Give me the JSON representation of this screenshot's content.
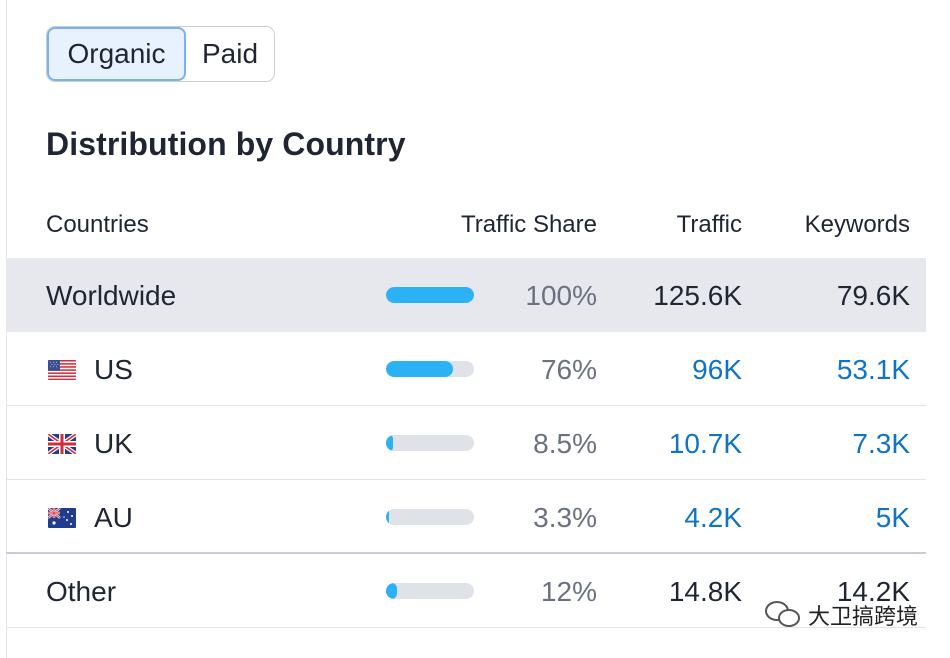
{
  "tabs": {
    "organic": "Organic",
    "paid": "Paid"
  },
  "page": {
    "title": "Distribution by Country"
  },
  "table": {
    "headers": {
      "countries": "Countries",
      "traffic_share": "Traffic Share",
      "traffic": "Traffic",
      "keywords": "Keywords"
    },
    "rows": [
      {
        "country": "Worldwide",
        "share": "100%",
        "share_fraction": 1.0,
        "traffic": "125.6K",
        "keywords": "79.6K"
      },
      {
        "country": "US",
        "flag_icon": "us-flag-icon",
        "share": "76%",
        "share_fraction": 0.76,
        "traffic": "96K",
        "keywords": "53.1K"
      },
      {
        "country": "UK",
        "flag_icon": "uk-flag-icon",
        "share": "8.5%",
        "share_fraction": 0.085,
        "traffic": "10.7K",
        "keywords": "7.3K"
      },
      {
        "country": "AU",
        "flag_icon": "au-flag-icon",
        "share": "3.3%",
        "share_fraction": 0.033,
        "traffic": "4.2K",
        "keywords": "5K"
      },
      {
        "country": "Other",
        "share": "12%",
        "share_fraction": 0.12,
        "traffic": "14.8K",
        "keywords": "14.2K"
      }
    ]
  },
  "watermark": {
    "text": "大卫搞跨境",
    "icon": "wechat-icon"
  },
  "colors": {
    "bar": "#2bb2f5",
    "bar_track": "#dfe3e8",
    "link": "#0f73c6",
    "highlight_row": "#e6e8ee",
    "active_tab_bg": "#e8f2ff",
    "active_tab_border": "#79b2e8"
  }
}
